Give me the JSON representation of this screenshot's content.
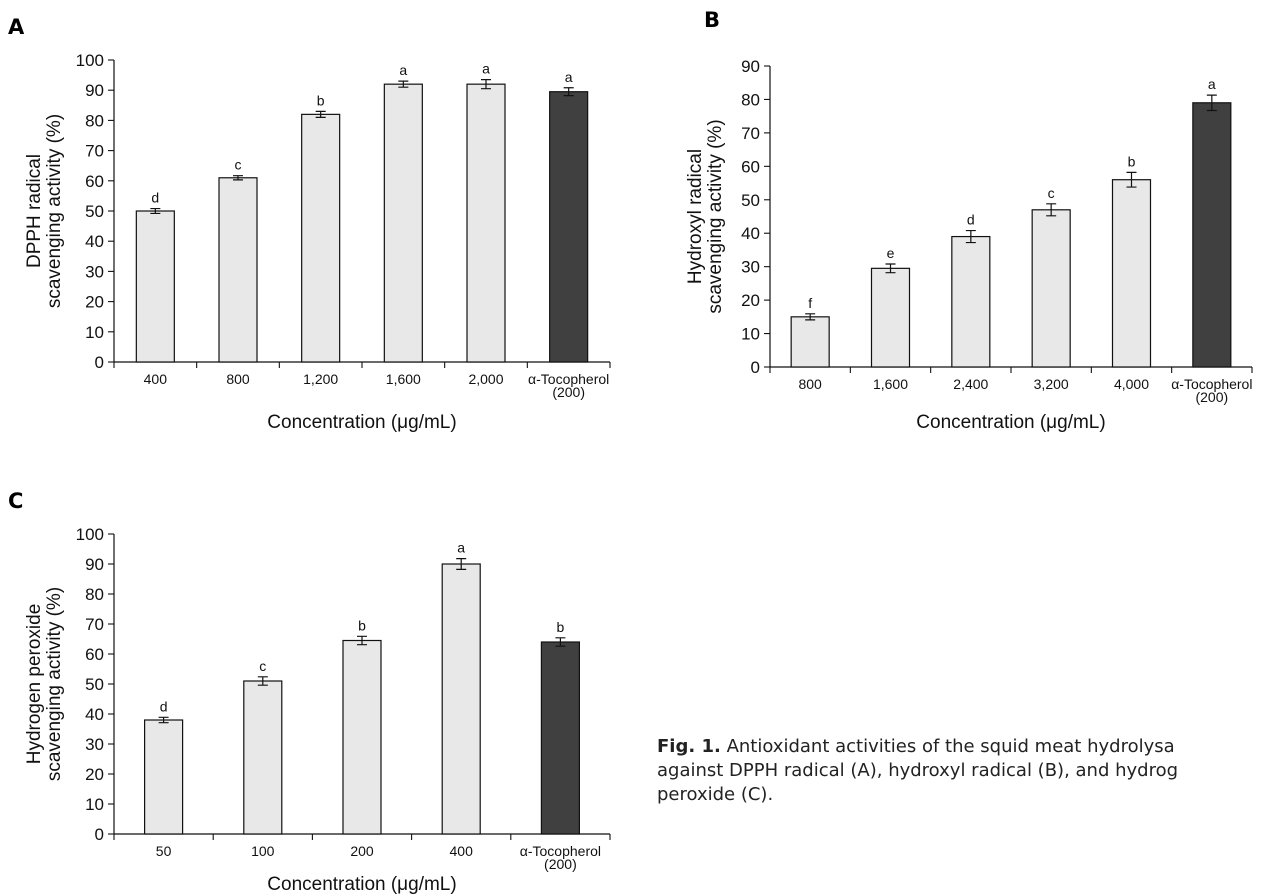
{
  "colors": {
    "sample_bar": "#e8e8e8",
    "control_bar": "#404040",
    "ink": "#111111"
  },
  "caption": {
    "label": "Fig. 1.",
    "line1": "Antioxidant activities of the squid meat hydrolysa",
    "line2": "against DPPH radical (A), hydroxyl radical (B), and hydrog",
    "line3": "peroxide (C)."
  },
  "chart_data": [
    {
      "panel": "A",
      "type": "bar",
      "ylabel": [
        "DPPH radical",
        "scavenging activity (%)"
      ],
      "xlabel": "Concentration (μg/mL)",
      "ylim": [
        0,
        100
      ],
      "yticks": [
        0,
        10,
        20,
        30,
        40,
        50,
        60,
        70,
        80,
        90,
        100
      ],
      "categories": [
        [
          "400"
        ],
        [
          "800"
        ],
        [
          "1,200"
        ],
        [
          "1,600"
        ],
        [
          "2,000"
        ],
        [
          "α-Tocopherol",
          "(200)"
        ]
      ],
      "values": [
        50,
        61,
        82,
        92,
        92,
        89.5
      ],
      "errors": [
        0.8,
        0.7,
        1.0,
        1.0,
        1.5,
        1.3
      ],
      "letters": [
        "d",
        "c",
        "b",
        "a",
        "a",
        "a"
      ],
      "control_index": 5,
      "grid": false
    },
    {
      "panel": "B",
      "type": "bar",
      "ylabel": [
        "Hydroxyl radical",
        "scavenging activity (%)"
      ],
      "xlabel": "Concentration (μg/mL)",
      "ylim": [
        0,
        90
      ],
      "yticks": [
        0,
        10,
        20,
        30,
        40,
        50,
        60,
        70,
        80,
        90
      ],
      "categories": [
        [
          "800"
        ],
        [
          "1,600"
        ],
        [
          "2,400"
        ],
        [
          "3,200"
        ],
        [
          "4,000"
        ],
        [
          "α-Tocopherol",
          "(200)"
        ]
      ],
      "values": [
        15,
        29.5,
        39,
        47,
        56,
        79
      ],
      "errors": [
        0.9,
        1.3,
        1.8,
        1.8,
        2.2,
        2.3
      ],
      "letters": [
        "f",
        "e",
        "d",
        "c",
        "b",
        "a"
      ],
      "control_index": 5,
      "grid": false
    },
    {
      "panel": "C",
      "type": "bar",
      "ylabel": [
        "Hydrogen peroxide",
        "scavenging activity (%)"
      ],
      "xlabel": "Concentration (μg/mL)",
      "ylim": [
        0,
        100
      ],
      "yticks": [
        0,
        10,
        20,
        30,
        40,
        50,
        60,
        70,
        80,
        90,
        100
      ],
      "categories": [
        [
          "50"
        ],
        [
          "100"
        ],
        [
          "200"
        ],
        [
          "400"
        ],
        [
          "α-Tocopherol",
          "(200)"
        ]
      ],
      "values": [
        38,
        51,
        64.5,
        90,
        64
      ],
      "errors": [
        0.9,
        1.4,
        1.4,
        1.8,
        1.4
      ],
      "letters": [
        "d",
        "c",
        "b",
        "a",
        "b"
      ],
      "control_index": 4,
      "grid": false
    }
  ]
}
